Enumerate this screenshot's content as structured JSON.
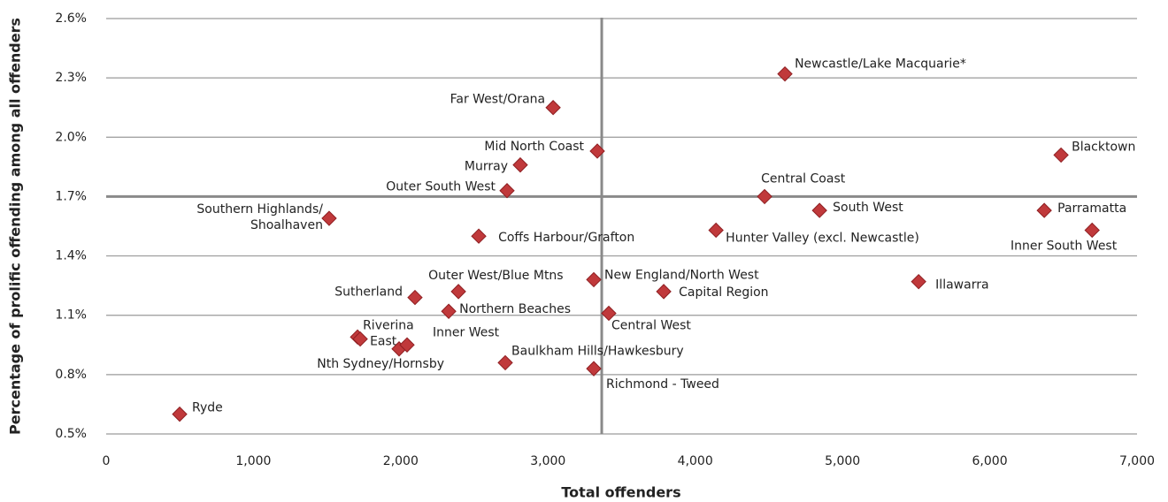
{
  "chart_data": {
    "type": "scatter",
    "xlabel": "Total offenders",
    "ylabel": "Percentage of prolific offending among all offenders",
    "color": "#c0393b",
    "labels": [
      "Ryde",
      "Riverina",
      "East",
      "Nth Sydney/Hornsby",
      "Inner West",
      "Sutherland",
      "Northern Beaches",
      "Outer West/Blue Mtns",
      "Baulkham Hills/Hawkesbury",
      "Richmond - Tweed",
      "Coffs Harbour/Grafton",
      [
        "Southern Highlands/",
        "Shoalhaven"
      ],
      "Outer South West",
      "Murray",
      "Mid North Coast",
      "Far West/Orana",
      "New England/North West",
      "Central West",
      "Capital Region",
      "Hunter Valley (excl. Newcastle)",
      "Central Coast",
      "South West",
      "Newcastle/Lake Macquarie*",
      "Illawarra",
      "Blacktown",
      "Parramatta",
      "Inner South West"
    ],
    "x": [
      499,
      1707,
      1725,
      1989,
      2043,
      2097,
      2326,
      2392,
      2710,
      3311,
      2530,
      1514,
      2722,
      2812,
      3335,
      3035,
      3311,
      3413,
      3786,
      4141,
      4471,
      4844,
      4609,
      5517,
      6484,
      6370,
      6695
    ],
    "values": [
      0.6,
      0.99,
      0.98,
      0.93,
      0.95,
      1.19,
      1.12,
      1.22,
      0.86,
      0.83,
      1.5,
      1.59,
      1.73,
      1.86,
      1.93,
      2.15,
      1.28,
      1.11,
      1.22,
      1.53,
      1.7,
      1.63,
      2.32,
      1.27,
      1.91,
      1.63,
      1.53
    ],
    "xref": 3365,
    "yref": 1.7,
    "xlim": [
      0,
      7000
    ],
    "xticks": [
      0,
      {
        "value": 1000,
        "label": "1,000"
      },
      {
        "value": 2000,
        "label": "2,000"
      },
      {
        "value": 3000,
        "label": "3,000"
      },
      {
        "value": 4000,
        "label": "4,000"
      },
      {
        "value": 5000,
        "label": "5,000"
      },
      {
        "value": 6000,
        "label": "6,000"
      },
      {
        "value": 7000,
        "label": "7,000"
      }
    ],
    "ylim": [
      0.5,
      2.6
    ],
    "yticks": [
      {
        "value": 0.5,
        "label": "0.5%"
      },
      {
        "value": 0.8,
        "label": "0.8%"
      },
      {
        "value": 1.1,
        "label": "1.1%"
      },
      {
        "value": 1.4,
        "label": "1.4%"
      },
      {
        "value": 1.7,
        "label": "1.7%"
      },
      {
        "value": 2.0,
        "label": "2.0%"
      },
      {
        "value": 2.3,
        "label": "2.3%"
      },
      {
        "value": 2.6,
        "label": "2.6%"
      }
    ],
    "grid": true
  }
}
